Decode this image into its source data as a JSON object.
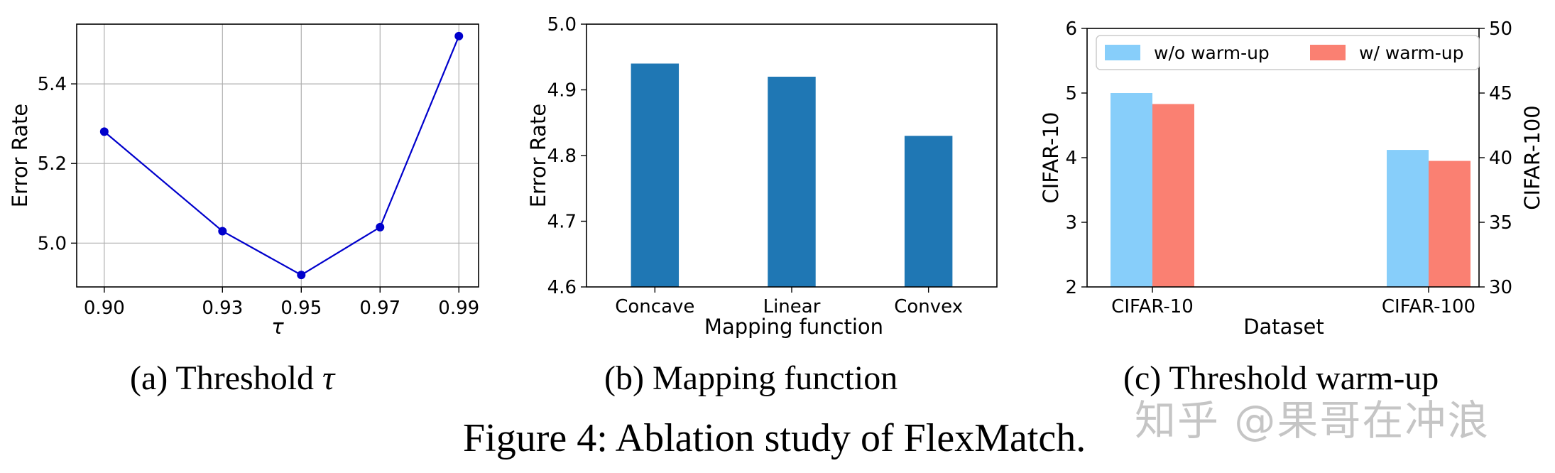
{
  "chart_data": [
    {
      "type": "line",
      "id": "a",
      "title": "",
      "xlabel": "τ",
      "ylabel": "Error Rate",
      "x": [
        0.9,
        0.93,
        0.95,
        0.97,
        0.99
      ],
      "x_tick_labels": [
        "0.90",
        "0.93",
        "0.95",
        "0.97",
        "0.99"
      ],
      "y": [
        5.28,
        5.03,
        4.92,
        5.04,
        5.52
      ],
      "y_ticks": [
        5.0,
        5.2,
        5.4
      ],
      "y_tick_labels": [
        "5.0",
        "5.2",
        "5.4"
      ],
      "ylim": [
        4.89,
        5.55
      ],
      "grid": true,
      "color": "#0000cc"
    },
    {
      "type": "bar",
      "id": "b",
      "xlabel": "Mapping function",
      "ylabel": "Error Rate",
      "categories": [
        "Concave",
        "Linear",
        "Convex"
      ],
      "values": [
        4.94,
        4.92,
        4.83
      ],
      "ylim": [
        4.6,
        5.0
      ],
      "y_ticks": [
        4.6,
        4.7,
        4.8,
        4.9,
        5.0
      ],
      "y_tick_labels": [
        "4.6",
        "4.7",
        "4.8",
        "4.9",
        "5.0"
      ],
      "color": "#1f77b4"
    },
    {
      "type": "bar",
      "id": "c",
      "xlabel": "Dataset",
      "ylabel": "CIFAR-10",
      "ylabel_right": "CIFAR-100",
      "categories": [
        "CIFAR-10",
        "CIFAR-100"
      ],
      "series": [
        {
          "name": "w/o warm-up",
          "values": [
            5.0,
            4.12
          ],
          "color": "#87cefa"
        },
        {
          "name": "w/ warm-up",
          "values": [
            4.83,
            3.95
          ],
          "color": "#fa8072"
        }
      ],
      "ylim": [
        2,
        6
      ],
      "y_ticks": [
        2,
        3,
        4,
        5,
        6
      ],
      "y_tick_labels": [
        "2",
        "3",
        "4",
        "5",
        "6"
      ],
      "ylim_right": [
        30,
        50
      ],
      "y_ticks_right": [
        30,
        35,
        40,
        45,
        50
      ],
      "y_tick_labels_right": [
        "30",
        "35",
        "40",
        "45",
        "50"
      ],
      "legend_position": "top"
    }
  ],
  "captions": {
    "a_prefix": "(a) Threshold ",
    "a_symbol": "τ",
    "b": "(b) Mapping function",
    "c": "(c) Threshold warm-up"
  },
  "figure_caption": "Figure 4: Ablation study of FlexMatch.",
  "watermark": "知乎 @果哥在冲浪"
}
